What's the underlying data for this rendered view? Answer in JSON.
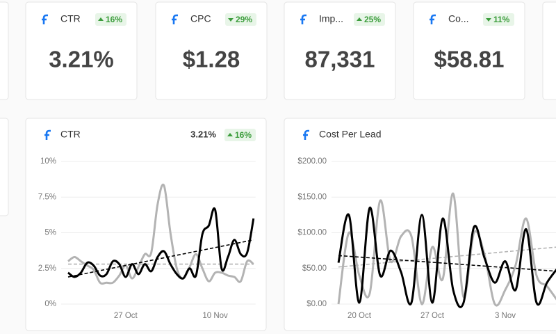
{
  "cards": [
    {
      "label": "CTR",
      "change": "16%",
      "direction": "up",
      "value": "3.21%"
    },
    {
      "label": "CPC",
      "change": "29%",
      "direction": "down",
      "value": "$1.28"
    },
    {
      "label": "Imp...",
      "change": "25%",
      "direction": "up",
      "value": "87,331"
    },
    {
      "label": "Co...",
      "change": "11%",
      "direction": "down",
      "value": "$58.81"
    }
  ],
  "chart_data": [
    {
      "type": "line",
      "title": "CTR",
      "current": "3.21%",
      "change": "16%",
      "direction": "up",
      "categories": [
        null,
        null,
        null,
        null,
        null,
        null,
        null,
        null,
        null,
        "27 Oct",
        null,
        null,
        null,
        null,
        null,
        null,
        null,
        null,
        null,
        null,
        null,
        null,
        null,
        "10 Nov",
        null,
        null,
        null,
        null,
        null,
        null
      ],
      "ylim": [
        0,
        10
      ],
      "yticks": [
        {
          "value": 0,
          "label": "0%"
        },
        {
          "value": 2.5,
          "label": "2.5%"
        },
        {
          "value": 5,
          "label": "5%"
        },
        {
          "value": 7.5,
          "label": "7.5%"
        },
        {
          "value": 10,
          "label": "10%"
        }
      ],
      "grid": true,
      "series": [
        {
          "color": "#000000",
          "values": [
            2.2,
            1.9,
            2.2,
            2.9,
            2.7,
            2.0,
            2.1,
            3.0,
            2.8,
            1.9,
            2.8,
            2.1,
            2.8,
            2.3,
            3.3,
            3.7,
            2.8,
            2.1,
            1.8,
            2.5,
            2.0,
            4.9,
            5.5,
            6.6,
            2.5,
            3.3,
            4.5,
            3.5,
            3.6,
            6.0
          ],
          "trend": [
            1.9,
            4.5
          ]
        },
        {
          "color": "#b3b3b3",
          "values": [
            3.0,
            3.3,
            3.0,
            2.7,
            2.4,
            1.5,
            1.5,
            1.5,
            2.0,
            2.7,
            1.8,
            2.6,
            3.5,
            3.6,
            7.0,
            8.3,
            5.0,
            2.5,
            1.8,
            2.6,
            3.5,
            2.5,
            1.6,
            2.2,
            2.2,
            2.0,
            1.9,
            1.6,
            3.0,
            2.8
          ],
          "trend": [
            2.8,
            2.8
          ]
        }
      ]
    },
    {
      "type": "line",
      "title": "Cost Per Lead",
      "categories": [
        null,
        null,
        "20 Oct",
        null,
        null,
        null,
        null,
        null,
        null,
        "27 Oct",
        null,
        null,
        null,
        null,
        null,
        null,
        "3 Nov",
        null,
        null,
        null,
        null,
        null
      ],
      "ylim": [
        0,
        200
      ],
      "yticks": [
        {
          "value": 0,
          "label": "$0.00"
        },
        {
          "value": 50,
          "label": "$50.00"
        },
        {
          "value": 100,
          "label": "$100.00"
        },
        {
          "value": 150,
          "label": "$150.00"
        },
        {
          "value": 200,
          "label": "$200.00"
        }
      ],
      "grid": true,
      "series": [
        {
          "color": "#000000",
          "values": [
            58,
            125,
            2,
            135,
            40,
            75,
            45,
            2,
            125,
            2,
            120,
            20,
            2,
            108,
            65,
            30,
            60,
            20,
            105,
            2,
            30,
            50
          ],
          "trend": [
            68,
            46
          ]
        },
        {
          "color": "#b3b3b3",
          "values": [
            0,
            100,
            40,
            15,
            145,
            60,
            95,
            95,
            0,
            80,
            35,
            155,
            10,
            100,
            70,
            0,
            20,
            55,
            120,
            40,
            25,
            5
          ],
          "trend": [
            52,
            80
          ]
        }
      ]
    }
  ]
}
